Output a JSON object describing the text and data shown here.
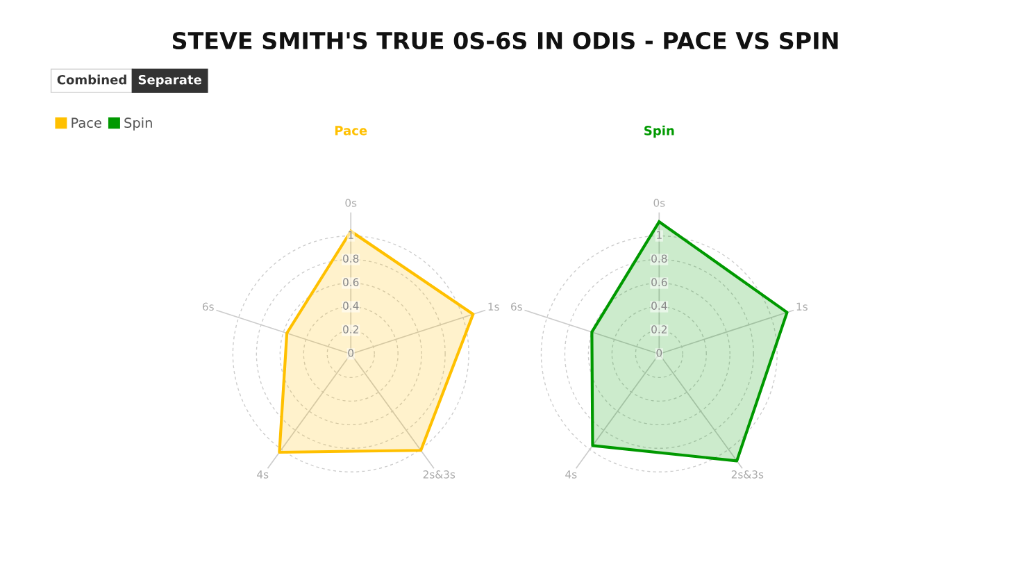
{
  "chart_data": [
    {
      "type": "other",
      "title": "STEVE SMITH'S TRUE 0S-6S IN ODIS - PACE VS SPIN",
      "annotations": [
        "Combined",
        "Separate"
      ]
    },
    {
      "type": "radar",
      "title": "Pace",
      "categories": [
        "0s",
        "1s",
        "2s&3s",
        "4s",
        "6s"
      ],
      "ylim": [
        0,
        1.2
      ],
      "yticks": [
        0,
        0.2,
        0.4,
        0.6,
        0.8,
        1
      ],
      "grid": true,
      "legend": "top left",
      "series": [
        {
          "name": "Pace",
          "color": "#ffc000",
          "values": [
            1.04,
            1.09,
            1.01,
            1.03,
            0.57
          ]
        }
      ]
    },
    {
      "type": "radar",
      "title": "Spin",
      "categories": [
        "0s",
        "1s",
        "2s&3s",
        "4s",
        "6s"
      ],
      "ylim": [
        0,
        1.2
      ],
      "yticks": [
        0,
        0.2,
        0.4,
        0.6,
        0.8,
        1
      ],
      "grid": true,
      "legend": "top left",
      "series": [
        {
          "name": "Spin",
          "color": "#009900",
          "values": [
            1.12,
            1.14,
            1.12,
            0.96,
            0.6
          ]
        }
      ]
    }
  ]
}
